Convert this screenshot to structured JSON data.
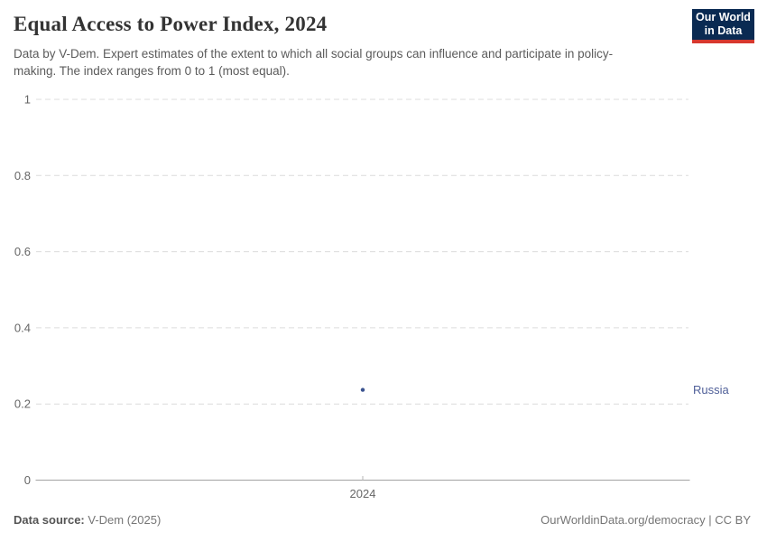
{
  "header": {
    "title": "Equal Access to Power Index, 2024",
    "subtitle": "Data by V-Dem. Expert estimates of the extent to which all social groups can influence and participate in policy-making. The index ranges from 0 to 1 (most equal)."
  },
  "logo": {
    "line1": "Our World",
    "line2": "in Data",
    "bg_color": "#0a2a52",
    "accent_color": "#d7382e"
  },
  "chart_data": {
    "type": "scatter",
    "title": "Equal Access to Power Index, 2024",
    "x": [
      2024
    ],
    "xtick_labels": [
      "2024"
    ],
    "series": [
      {
        "name": "Russia",
        "values": [
          0.237
        ],
        "color": "#3b5490",
        "label_color": "#506099"
      }
    ],
    "xlabel": "",
    "ylabel": "",
    "ylim": [
      0,
      1
    ],
    "yticks": [
      0,
      0.2,
      0.4,
      0.6,
      0.8,
      1
    ],
    "ytick_labels": [
      "0",
      "0.2",
      "0.4",
      "0.6",
      "0.8",
      "1"
    ],
    "grid": "dashed-horizontal",
    "legend": "entity-label-right",
    "grid_color": "#dcdcdc",
    "axis_color": "#a3a3a3",
    "tick_label_color": "#666666"
  },
  "footer": {
    "source_label": "Data source:",
    "source_value": " V-Dem (2025)",
    "attribution": "OurWorldinData.org/democracy | CC BY"
  }
}
